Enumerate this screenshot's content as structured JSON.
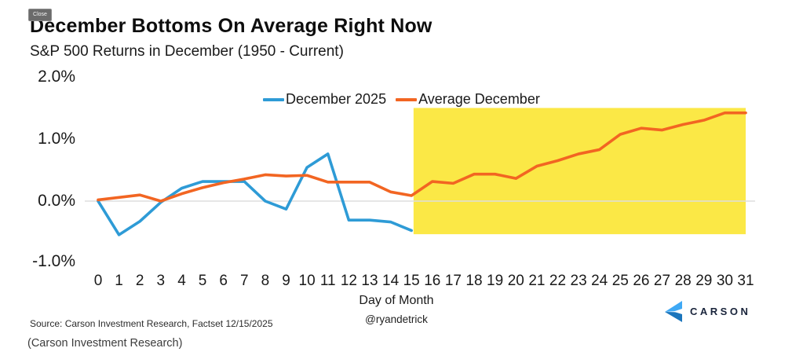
{
  "overlay": {
    "close_label": "Close"
  },
  "header": {
    "title": "December Bottoms On Average Right Now",
    "subtitle": "S&P 500 Returns in December (1950 - Current)"
  },
  "chart_data": {
    "type": "line",
    "title": "December Bottoms On Average Right Now",
    "subtitle": "S&P 500 Returns in December (1950 - Current)",
    "xlabel": "Day of Month",
    "ylabel": "",
    "grid": "zero-line-only",
    "legend_position": "top-center",
    "xlim": [
      -0.6,
      31.45
    ],
    "ylim": [
      -1.35,
      2.15
    ],
    "x_ticks": [
      0,
      1,
      2,
      3,
      4,
      5,
      6,
      7,
      8,
      9,
      10,
      11,
      12,
      13,
      14,
      15,
      16,
      17,
      18,
      19,
      20,
      21,
      22,
      23,
      24,
      25,
      26,
      27,
      28,
      29,
      30,
      31
    ],
    "y_ticks": [
      {
        "label": "2.0%",
        "value": 2.0
      },
      {
        "label": "1.0%",
        "value": 1.0
      },
      {
        "label": "0.0%",
        "value": 0.0
      },
      {
        "label": "-1.0%",
        "value": -1.0
      }
    ],
    "series": [
      {
        "name": "December 2025",
        "color": "#2E9BD6",
        "x": [
          0,
          1,
          2,
          3,
          4,
          5,
          6,
          7,
          8,
          9,
          10,
          11,
          12,
          13,
          14,
          15
        ],
        "values": [
          0.0,
          -0.55,
          -0.33,
          -0.02,
          0.21,
          0.32,
          0.32,
          0.32,
          0.0,
          -0.13,
          0.55,
          0.77,
          -0.31,
          -0.31,
          -0.34,
          -0.48
        ]
      },
      {
        "name": "Average December",
        "color": "#F26522",
        "x": [
          0,
          1,
          2,
          3,
          4,
          5,
          6,
          7,
          8,
          9,
          10,
          11,
          12,
          13,
          14,
          15,
          16,
          17,
          18,
          19,
          20,
          21,
          22,
          23,
          24,
          25,
          26,
          27,
          28,
          29,
          30,
          31
        ],
        "values": [
          0.02,
          0.06,
          0.1,
          0.0,
          0.12,
          0.22,
          0.3,
          0.36,
          0.43,
          0.41,
          0.42,
          0.31,
          0.31,
          0.31,
          0.15,
          0.09,
          0.32,
          0.29,
          0.44,
          0.44,
          0.37,
          0.57,
          0.66,
          0.77,
          0.84,
          1.09,
          1.19,
          1.16,
          1.25,
          1.32,
          1.44,
          1.44
        ]
      }
    ],
    "highlight": {
      "x_start": 15.1,
      "x_end": 31,
      "y_bottom": -0.54,
      "y_top": 1.52,
      "color": "#FBE846"
    },
    "colors": {
      "zero_gridline": "#DEDEDE",
      "text": "#1A1A1A"
    }
  },
  "footer": {
    "xaxis_title": "Day of Month",
    "handle": "@ryandetrick",
    "source": "Source: Carson Investment Research, Factset 12/15/2025",
    "logo_text": "CARSON",
    "logo_navy": "#19243B",
    "logo_light_blue": "#3FA9F5",
    "logo_dark_blue": "#1B75BC"
  },
  "caption": "(Carson Investment Research)"
}
